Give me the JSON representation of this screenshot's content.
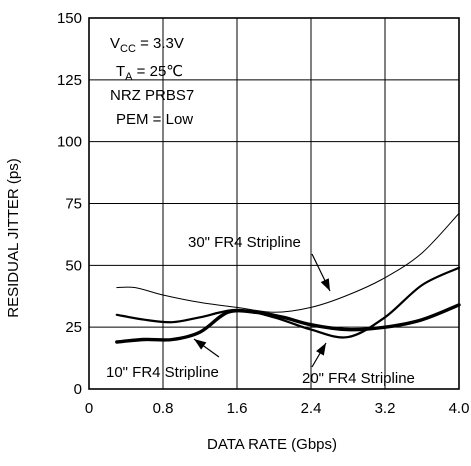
{
  "chart_data": {
    "type": "line",
    "title": "",
    "xlabel": "DATA RATE (Gbps)",
    "ylabel": "RESIDUAL JITTER (ps)",
    "xlim": [
      0,
      4.0
    ],
    "ylim": [
      0,
      150
    ],
    "x_ticks": [
      0,
      0.8,
      1.6,
      2.4,
      3.2,
      4.0
    ],
    "x_tick_labels": [
      "0",
      "0.8",
      "1.6",
      "2.4",
      "3.2",
      "4.0"
    ],
    "y_ticks": [
      0,
      25,
      50,
      75,
      100,
      125,
      150
    ],
    "y_tick_labels": [
      "0",
      "25",
      "50",
      "75",
      "100",
      "125",
      "150"
    ],
    "grid": true,
    "conditions": {
      "vcc_prefix": "V",
      "vcc_sub": "CC",
      "vcc_value": " = 3.3V",
      "ta_prefix": "T",
      "ta_sub": "A",
      "ta_value": " = 25℃",
      "pattern": "NRZ PRBS7",
      "pem": "PEM = Low"
    },
    "series": [
      {
        "name": "30\" FR4 Stripline",
        "stroke": 1,
        "points": [
          [
            0.3,
            41
          ],
          [
            0.5,
            41
          ],
          [
            0.8,
            38
          ],
          [
            1.2,
            35
          ],
          [
            1.6,
            33
          ],
          [
            2.0,
            31
          ],
          [
            2.4,
            33
          ],
          [
            2.8,
            38
          ],
          [
            3.2,
            45
          ],
          [
            3.6,
            55
          ],
          [
            4.0,
            71
          ]
        ]
      },
      {
        "name": "20\" FR4 Stripline",
        "stroke": 2.2,
        "points": [
          [
            0.3,
            30
          ],
          [
            0.6,
            28
          ],
          [
            0.9,
            27
          ],
          [
            1.2,
            29
          ],
          [
            1.6,
            32
          ],
          [
            2.0,
            29
          ],
          [
            2.4,
            24
          ],
          [
            2.8,
            21
          ],
          [
            3.2,
            29
          ],
          [
            3.6,
            42
          ],
          [
            4.0,
            49
          ]
        ]
      },
      {
        "name": "10\" FR4 Stripline",
        "stroke": 3.4,
        "points": [
          [
            0.3,
            19
          ],
          [
            0.6,
            20
          ],
          [
            0.9,
            20
          ],
          [
            1.2,
            23
          ],
          [
            1.5,
            31
          ],
          [
            1.8,
            31
          ],
          [
            2.1,
            29
          ],
          [
            2.4,
            26
          ],
          [
            2.8,
            24
          ],
          [
            3.2,
            25
          ],
          [
            3.6,
            28
          ],
          [
            4.0,
            34
          ]
        ]
      }
    ],
    "annotations": [
      {
        "series": 0,
        "text": "30\" FR4 Stripline"
      },
      {
        "series": 1,
        "text": "20\" FR4 Stripline"
      },
      {
        "series": 2,
        "text": "10\" FR4 Stripline"
      }
    ]
  }
}
